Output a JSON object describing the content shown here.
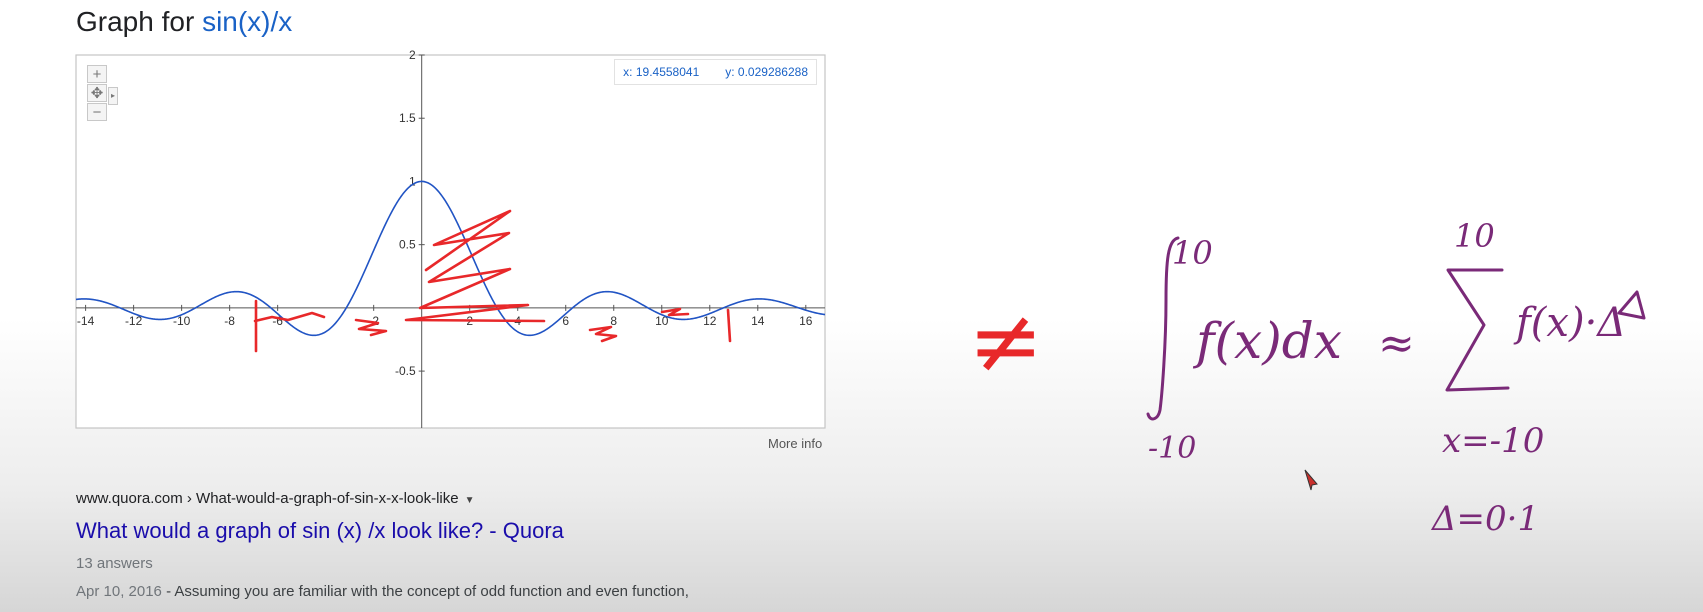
{
  "heading": {
    "prefix": "Graph for ",
    "function": "sin(x)/x"
  },
  "graph": {
    "coord_x": "x: 19.4558041",
    "coord_y": "y: 0.029286288",
    "zoom_in": "+",
    "zoom_out": "−",
    "pan": "✥",
    "more_info": "More info"
  },
  "chart_data": {
    "type": "line",
    "function": "sin(x)/x",
    "xlim": [
      -14.4,
      16.8
    ],
    "ylim": [
      -0.95,
      2
    ],
    "x_ticks": [
      "-14",
      "-12",
      "-10",
      "-8",
      "-6",
      "-2",
      "2",
      "4",
      "6",
      "8",
      "10",
      "12",
      "14",
      "16"
    ],
    "y_ticks": [
      "2",
      "1.5",
      "1",
      "0.5",
      "-0.5"
    ],
    "series": [
      {
        "color": "#2154c4"
      }
    ],
    "grid": false
  },
  "result": {
    "url": "www.quora.com › What-would-a-graph-of-sin-x-x-look-like",
    "title": "What would a graph of sin (x) /x look like? - Quora",
    "answers": "13 answers",
    "date": "Apr 10, 2016",
    "snippet": " - Assuming you are familiar with the concept of odd function and even function,"
  },
  "handwriting": {
    "ink_color": "#7a2a78",
    "red_ink": "#e8282a",
    "neq": "≠",
    "upper_10_left": "10",
    "lower_10_left": "-10",
    "integrand": "f(x)dx",
    "approx": "≈",
    "upper_10_right": "10",
    "summand": "f(x)·Δ",
    "sum_start": "x=-10",
    "delta_value": "Δ=0·1"
  }
}
